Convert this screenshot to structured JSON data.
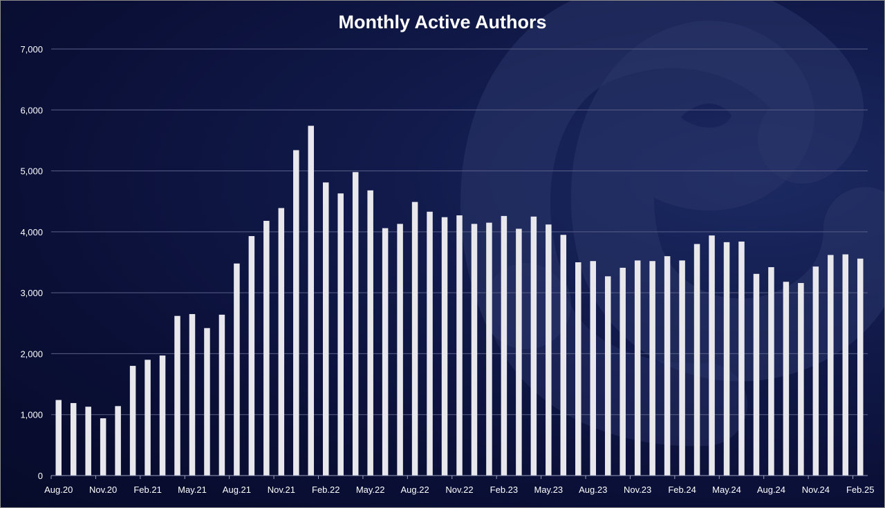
{
  "chart_data": {
    "type": "bar",
    "title": "Monthly Active Authors",
    "xlabel": "",
    "ylabel": "",
    "ylim": [
      0,
      7000
    ],
    "yticks": [
      0,
      1000,
      2000,
      3000,
      4000,
      5000,
      6000,
      7000
    ],
    "ytick_labels": [
      "0",
      "1,000",
      "2,000",
      "3,000",
      "4,000",
      "5,000",
      "6,000",
      "7,000"
    ],
    "grid": true,
    "legend": "none",
    "bar_color": "#e8e8ec",
    "categories": [
      "Aug.20",
      "Sep.20",
      "Oct.20",
      "Nov.20",
      "Dec.20",
      "Jan.21",
      "Feb.21",
      "Mar.21",
      "Apr.21",
      "May.21",
      "Jun.21",
      "Jul.21",
      "Aug.21",
      "Sep.21",
      "Oct.21",
      "Nov.21",
      "Dec.21",
      "Jan.22",
      "Feb.22",
      "Mar.22",
      "Apr.22",
      "May.22",
      "Jun.22",
      "Jul.22",
      "Aug.22",
      "Sep.22",
      "Oct.22",
      "Nov.22",
      "Dec.22",
      "Jan.23",
      "Feb.23",
      "Mar.23",
      "Apr.23",
      "May.23",
      "Jun.23",
      "Jul.23",
      "Aug.23",
      "Sep.23",
      "Oct.23",
      "Nov.23",
      "Dec.23",
      "Jan.24",
      "Feb.24",
      "Mar.24",
      "Apr.24",
      "May.24",
      "Jun.24",
      "Jul.24",
      "Aug.24",
      "Sep.24",
      "Oct.24",
      "Nov.24",
      "Dec.24",
      "Jan.25",
      "Feb.25"
    ],
    "values": [
      1240,
      1190,
      1130,
      940,
      1140,
      1800,
      1900,
      1970,
      2620,
      2650,
      2420,
      2640,
      3480,
      3930,
      4180,
      4390,
      5340,
      5740,
      4810,
      4630,
      4980,
      4680,
      4060,
      4130,
      4490,
      4330,
      4240,
      4270,
      4130,
      4150,
      4260,
      4050,
      4250,
      4120,
      3950,
      3500,
      3520,
      3270,
      3410,
      3530,
      3520,
      3600,
      3530,
      3800,
      3940,
      3830,
      3840,
      3310,
      3420,
      3180,
      3160,
      3430,
      3620,
      3630,
      3560
    ],
    "x_tick_labels": [
      "Aug.20",
      "Nov.20",
      "Feb.21",
      "May.21",
      "Aug.21",
      "Nov.21",
      "Feb.22",
      "May.22",
      "Aug.22",
      "Nov.22",
      "Feb.23",
      "May.23",
      "Aug.23",
      "Nov.23",
      "Feb.24",
      "May.24",
      "Aug.24",
      "Nov.24",
      "Feb.25"
    ]
  },
  "colors": {
    "background": "#0a0f36",
    "gridline": "#5a6088",
    "text": "#ffffff",
    "watermark": "#2a3468"
  },
  "watermark_icon": "brand-logo-icon"
}
